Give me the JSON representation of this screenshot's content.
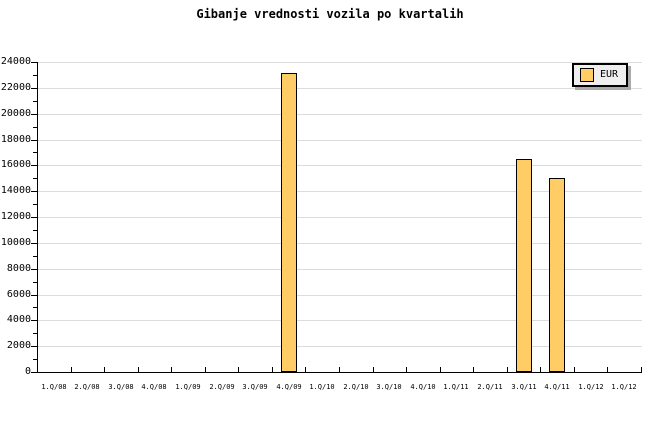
{
  "title": "Gibanje vrednosti vozila po kvartalih",
  "legend": {
    "label": "EUR",
    "swatch_color": "#ffcc66"
  },
  "colors": {
    "background": "#ffffff",
    "bar_fill": "#ffcc66",
    "bar_border": "#000000",
    "gridline": "#dcdcdc",
    "axis": "#000000",
    "legend_bg": "#efefef",
    "legend_shadow": "#aaaaaa",
    "text": "#000000"
  },
  "chart_data": {
    "type": "bar",
    "title": "Gibanje vrednosti vozila po kvartalih",
    "categories": [
      "1.Q/08",
      "2.Q/08",
      "3.Q/08",
      "4.Q/08",
      "1.Q/09",
      "2.Q/09",
      "3.Q/09",
      "4.Q/09",
      "1.Q/10",
      "2.Q/10",
      "3.Q/10",
      "4.Q/10",
      "1.Q/11",
      "2.Q/11",
      "3.Q/11",
      "4.Q/11",
      "1.Q/12",
      "1.Q/12"
    ],
    "series": [
      {
        "name": "EUR",
        "values": [
          null,
          null,
          null,
          null,
          null,
          null,
          null,
          23150,
          null,
          null,
          null,
          null,
          null,
          null,
          16500,
          15000,
          null,
          null
        ]
      }
    ],
    "xlabel": "",
    "ylabel": "",
    "ylim": [
      0,
      24000
    ],
    "ytick_step": 2000,
    "ytick_minor_step": 1000,
    "ytick_labels": [
      "0",
      "2000",
      "4000",
      "6000",
      "8000",
      "10000",
      "12000",
      "14000",
      "16000",
      "18000",
      "20000",
      "22000",
      "24000"
    ],
    "grid": "horizontal-major",
    "legend_position": "top-right"
  }
}
